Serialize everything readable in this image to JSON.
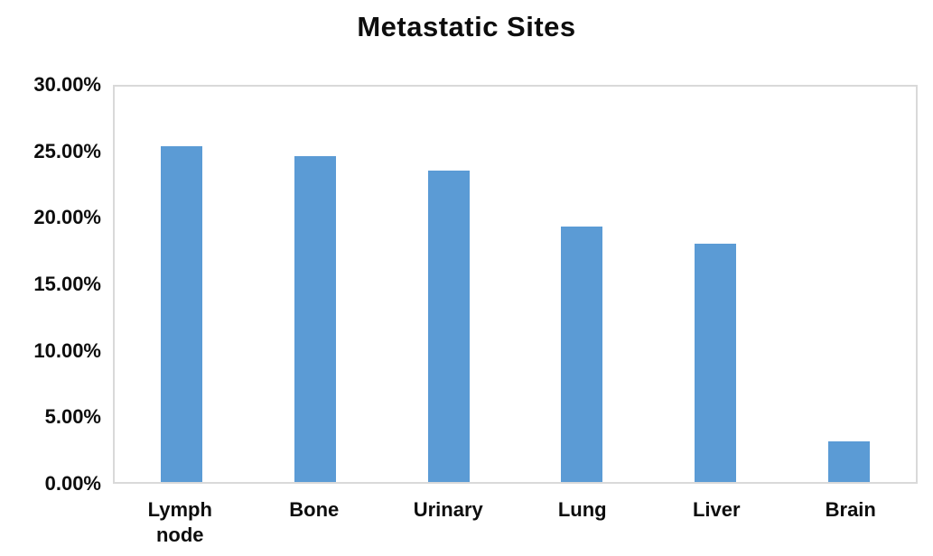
{
  "chart_data": {
    "type": "bar",
    "title": "Metastatic Sites",
    "categories": [
      "Lymph node",
      "Bone",
      "Urinary",
      "Lung",
      "Liver",
      "Brain"
    ],
    "values": [
      25.5,
      24.7,
      23.6,
      19.4,
      18.1,
      3.1
    ],
    "value_unit": "%",
    "xlabel": "",
    "ylabel": "",
    "ylim": [
      0,
      30
    ],
    "y_tick_values": [
      30,
      25,
      20,
      15,
      10,
      5,
      0
    ],
    "y_tick_labels": [
      "30.00%",
      "25.00%",
      "20.00%",
      "15.00%",
      "10.00%",
      "5.00%",
      "0.00%"
    ],
    "grid": false,
    "legend": false,
    "colors": {
      "bar": "#5b9bd5",
      "plot_border": "#d9d9d9",
      "text": "#0d0d0d",
      "background": "#ffffff"
    }
  }
}
